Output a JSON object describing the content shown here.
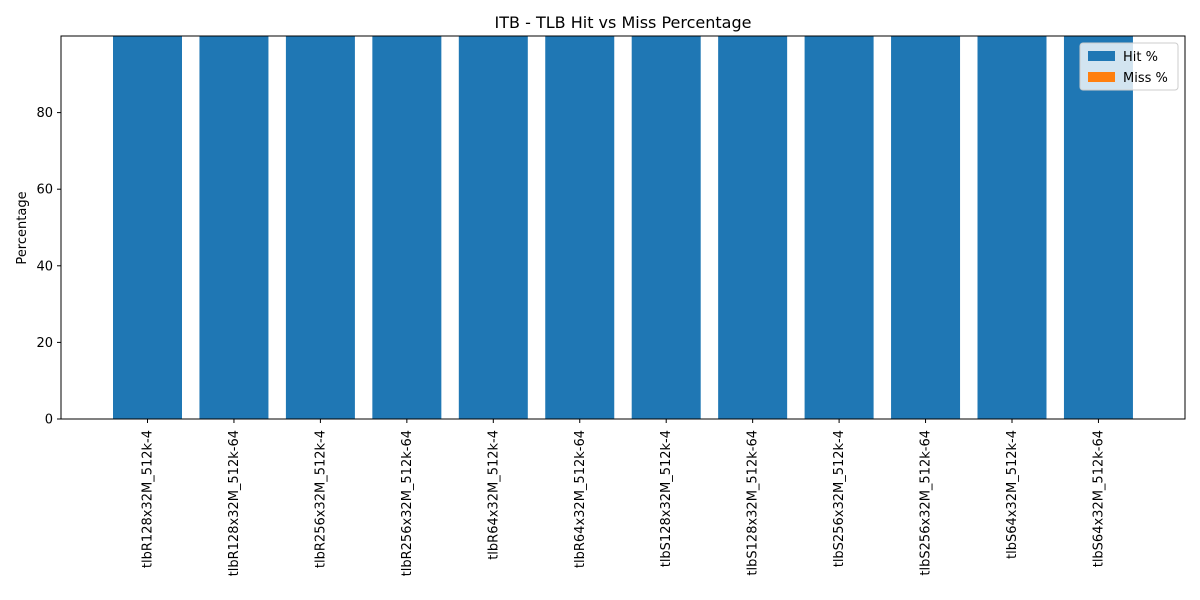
{
  "chart_data": {
    "type": "bar",
    "stacked": true,
    "title": "ITB - TLB Hit vs Miss Percentage",
    "xlabel": "",
    "ylabel": "Percentage",
    "ylim": [
      0,
      100
    ],
    "yticks": [
      0,
      20,
      40,
      60,
      80
    ],
    "categories": [
      "tlbR128x32M_512k-4",
      "tlbR128x32M_512k-64",
      "tlbR256x32M_512k-4",
      "tlbR256x32M_512k-64",
      "tlbR64x32M_512k-4",
      "tlbR64x32M_512k-64",
      "tlbS128x32M_512k-4",
      "tlbS128x32M_512k-64",
      "tlbS256x32M_512k-4",
      "tlbS256x32M_512k-64",
      "tlbS64x32M_512k-4",
      "tlbS64x32M_512k-64"
    ],
    "series": [
      {
        "name": "Hit %",
        "color": "#1f77b4",
        "values": [
          100,
          100,
          100,
          100,
          100,
          100,
          100,
          100,
          100,
          100,
          100,
          100
        ]
      },
      {
        "name": "Miss %",
        "color": "#ff7f0e",
        "values": [
          0,
          0,
          0,
          0,
          0,
          0,
          0,
          0,
          0,
          0,
          0,
          0
        ]
      }
    ],
    "legend_position": "top-right",
    "grid": false
  }
}
